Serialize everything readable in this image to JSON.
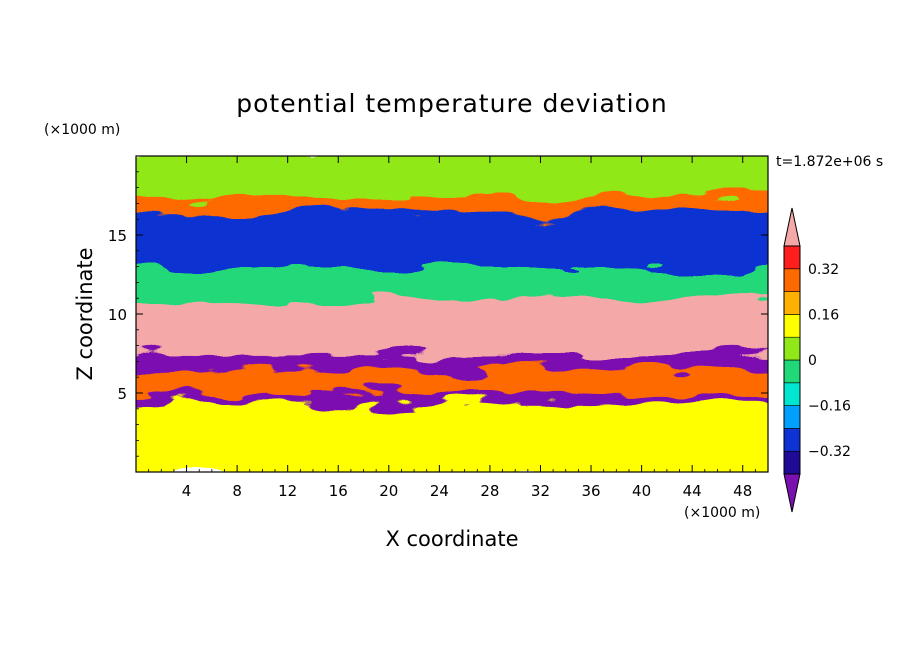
{
  "chart_data": {
    "type": "heatmap",
    "title": "potential temperature deviation",
    "xlabel": "X coordinate",
    "ylabel": "Z coordinate",
    "x_unit": "(×1000 m)",
    "y_unit": "(×1000 m)",
    "time_label": "t=1.872e+06 s",
    "xlim": [
      0,
      50
    ],
    "ylim": [
      0,
      20
    ],
    "x_ticks": [
      4,
      8,
      12,
      16,
      20,
      24,
      28,
      32,
      36,
      40,
      44,
      48
    ],
    "x_tick_labels": [
      "4",
      "8",
      "12",
      "16",
      "20",
      "24",
      "28",
      "32",
      "36",
      "40",
      "44",
      "48"
    ],
    "y_ticks": [
      5,
      10,
      15
    ],
    "y_tick_labels": [
      "5",
      "10",
      "15"
    ],
    "colorbar": {
      "levels": [
        -0.4,
        -0.32,
        -0.24,
        -0.16,
        -0.08,
        0,
        0.08,
        0.16,
        0.24,
        0.32,
        0.4
      ],
      "labeled_levels": [
        -0.32,
        -0.16,
        0,
        0.16,
        0.32
      ],
      "labels": [
        "−0.32",
        "−0.16",
        "0",
        "0.16",
        "0.32"
      ],
      "colors": [
        "#7B10B0",
        "#1E0A95",
        "#0F32D2",
        "#00A0FF",
        "#00E6D0",
        "#20D878",
        "#90E818",
        "#FFFF00",
        "#FFB000",
        "#FF6A00",
        "#FF1E1E",
        "#F4A8A8"
      ],
      "extend": "both"
    },
    "field_bands": [
      {
        "z_min": 17.0,
        "z_max": 20.0,
        "value": 0.06
      },
      {
        "z_min": 16.0,
        "z_max": 17.0,
        "value": 0.28
      },
      {
        "z_min": 12.5,
        "z_max": 16.0,
        "value": -0.3
      },
      {
        "z_min": 10.5,
        "z_max": 12.5,
        "value": -0.05
      },
      {
        "z_min": 7.0,
        "z_max": 10.5,
        "value": 0.42
      },
      {
        "z_min": 6.0,
        "z_max": 7.0,
        "value": -0.42
      },
      {
        "z_min": 4.5,
        "z_max": 6.0,
        "value": 0.3
      },
      {
        "z_min": 4.0,
        "z_max": 4.5,
        "value": -0.42
      },
      {
        "z_min": 0.0,
        "z_max": 4.0,
        "value": 0.1
      }
    ]
  }
}
